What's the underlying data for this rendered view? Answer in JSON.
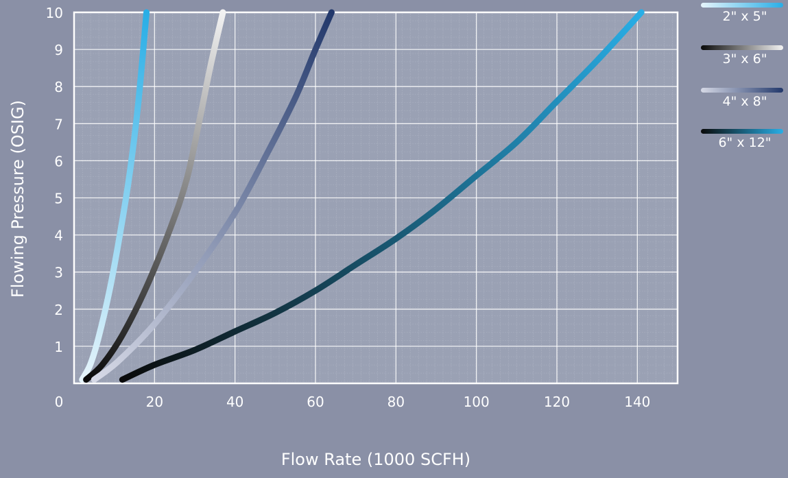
{
  "chart_data": {
    "type": "line",
    "title": "",
    "xlabel": "Flow Rate (1000 SCFH)",
    "ylabel": "Flowing Pressure (OSIG)",
    "xlim": [
      0,
      150
    ],
    "ylim": [
      0,
      10
    ],
    "x_ticks": [
      0,
      20,
      40,
      60,
      80,
      100,
      120,
      140
    ],
    "x_tick_labels": [
      "0",
      "20",
      "40",
      "60",
      "80",
      "100",
      "120",
      "140"
    ],
    "y_ticks": [
      1,
      2,
      3,
      4,
      5,
      6,
      7,
      8,
      9,
      10
    ],
    "y_tick_labels": [
      "1",
      "2",
      "3",
      "4",
      "5",
      "6",
      "7",
      "8",
      "9",
      "10"
    ],
    "grid": true,
    "legend_position": "top-right",
    "colors": {
      "background": "#8a90a6",
      "plot_area": "#9aa1b4",
      "grid": "#ffffff"
    },
    "series": [
      {
        "name": "2\" x 5\"",
        "gradient": [
          "#e6f4fb",
          "#29aee6"
        ],
        "points": [
          [
            2,
            0.1
          ],
          [
            4,
            0.5
          ],
          [
            6,
            1.2
          ],
          [
            9,
            2.6
          ],
          [
            12,
            4.4
          ],
          [
            14,
            5.8
          ],
          [
            16,
            7.6
          ],
          [
            18,
            10
          ]
        ]
      },
      {
        "name": "3\" x 6\"",
        "gradient": [
          "#0a0a0a",
          "#f2f2f2"
        ],
        "points": [
          [
            3,
            0.1
          ],
          [
            7,
            0.5
          ],
          [
            12,
            1.3
          ],
          [
            18,
            2.6
          ],
          [
            24,
            4.2
          ],
          [
            28,
            5.5
          ],
          [
            31,
            7
          ],
          [
            34,
            8.6
          ],
          [
            37,
            10
          ]
        ]
      },
      {
        "name": "4\" x 8\"",
        "gradient": [
          "#d6d9e6",
          "#22386b"
        ],
        "points": [
          [
            5,
            0.1
          ],
          [
            11,
            0.6
          ],
          [
            20,
            1.6
          ],
          [
            30,
            3
          ],
          [
            40,
            4.6
          ],
          [
            48,
            6.2
          ],
          [
            55,
            7.7
          ],
          [
            60,
            9
          ],
          [
            64,
            10
          ]
        ]
      },
      {
        "name": "6\" x 12\"",
        "gradient": [
          "#0a0a0a",
          "#29aee6"
        ],
        "points": [
          [
            12,
            0.1
          ],
          [
            20,
            0.5
          ],
          [
            30,
            0.9
          ],
          [
            40,
            1.4
          ],
          [
            50,
            1.9
          ],
          [
            60,
            2.5
          ],
          [
            70,
            3.2
          ],
          [
            80,
            3.9
          ],
          [
            90,
            4.7
          ],
          [
            100,
            5.6
          ],
          [
            110,
            6.5
          ],
          [
            120,
            7.6
          ],
          [
            130,
            8.7
          ],
          [
            141,
            10
          ]
        ]
      }
    ]
  }
}
